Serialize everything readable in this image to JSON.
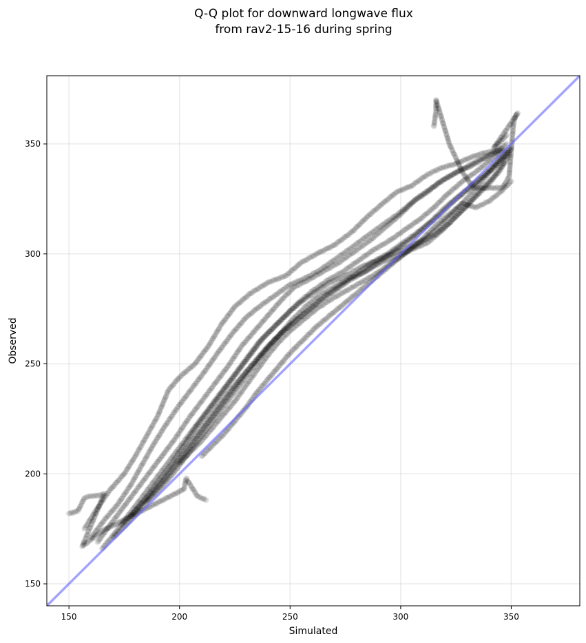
{
  "chart_data": {
    "type": "scatter",
    "title": "Q-Q plot for downward longwave flux",
    "subtitle": "from rav2-15-16 during spring",
    "xlabel": "Simulated",
    "ylabel": "Observed",
    "xlim": [
      140,
      381
    ],
    "ylim": [
      140,
      381
    ],
    "xticks": [
      150,
      200,
      250,
      300,
      350
    ],
    "yticks": [
      150,
      200,
      250,
      300,
      350
    ],
    "grid": true,
    "legend": false,
    "point_color": "#000000",
    "point_alpha": 0.12,
    "reference_line": {
      "from": [
        140,
        140
      ],
      "to": [
        381,
        381
      ],
      "color": "#6666ff"
    },
    "series": [
      {
        "points": [
          [
            157,
            175
          ],
          [
            162,
            183
          ],
          [
            168,
            192
          ],
          [
            175,
            200
          ],
          [
            180,
            208
          ],
          [
            185,
            217
          ],
          [
            190,
            226
          ],
          [
            195,
            238
          ],
          [
            200,
            244
          ],
          [
            207,
            250
          ],
          [
            213,
            258
          ],
          [
            219,
            268
          ],
          [
            225,
            276
          ],
          [
            232,
            282
          ],
          [
            240,
            287
          ],
          [
            248,
            290
          ],
          [
            255,
            296
          ],
          [
            262,
            300
          ],
          [
            270,
            304
          ],
          [
            278,
            310
          ],
          [
            285,
            317
          ],
          [
            292,
            323
          ],
          [
            298,
            328
          ],
          [
            305,
            331
          ],
          [
            312,
            336
          ],
          [
            318,
            339
          ],
          [
            325,
            341
          ],
          [
            332,
            344
          ],
          [
            338,
            346
          ],
          [
            344,
            347
          ],
          [
            348,
            350
          ]
        ]
      },
      {
        "points": [
          [
            160,
            171
          ],
          [
            166,
            179
          ],
          [
            172,
            186
          ],
          [
            178,
            195
          ],
          [
            183,
            204
          ],
          [
            188,
            213
          ],
          [
            193,
            221
          ],
          [
            199,
            230
          ],
          [
            205,
            238
          ],
          [
            211,
            246
          ],
          [
            218,
            256
          ],
          [
            224,
            264
          ],
          [
            230,
            271
          ],
          [
            236,
            276
          ],
          [
            243,
            281
          ],
          [
            250,
            286
          ],
          [
            257,
            289
          ],
          [
            264,
            293
          ],
          [
            271,
            298
          ],
          [
            278,
            303
          ],
          [
            286,
            309
          ],
          [
            293,
            314
          ],
          [
            300,
            319
          ],
          [
            307,
            325
          ],
          [
            314,
            330
          ],
          [
            320,
            334
          ],
          [
            327,
            338
          ],
          [
            334,
            342
          ],
          [
            340,
            345
          ],
          [
            346,
            348
          ]
        ]
      },
      {
        "points": [
          [
            163,
            169
          ],
          [
            168,
            176
          ],
          [
            174,
            184
          ],
          [
            180,
            192
          ],
          [
            186,
            200
          ],
          [
            192,
            208
          ],
          [
            198,
            216
          ],
          [
            204,
            225
          ],
          [
            210,
            233
          ],
          [
            216,
            241
          ],
          [
            222,
            249
          ],
          [
            228,
            258
          ],
          [
            234,
            265
          ],
          [
            240,
            272
          ],
          [
            246,
            279
          ],
          [
            252,
            285
          ],
          [
            258,
            288
          ],
          [
            265,
            292
          ],
          [
            272,
            296
          ],
          [
            279,
            301
          ],
          [
            286,
            306
          ],
          [
            293,
            312
          ],
          [
            300,
            318
          ],
          [
            306,
            324
          ],
          [
            312,
            328
          ],
          [
            318,
            333
          ],
          [
            325,
            337
          ],
          [
            332,
            340
          ],
          [
            339,
            344
          ],
          [
            345,
            347
          ]
        ]
      },
      {
        "points": [
          [
            165,
            166
          ],
          [
            170,
            172
          ],
          [
            176,
            180
          ],
          [
            182,
            188
          ],
          [
            188,
            196
          ],
          [
            194,
            204
          ],
          [
            200,
            212
          ],
          [
            206,
            220
          ],
          [
            212,
            228
          ],
          [
            218,
            236
          ],
          [
            224,
            244
          ],
          [
            230,
            252
          ],
          [
            236,
            260
          ],
          [
            242,
            266
          ],
          [
            248,
            272
          ],
          [
            254,
            278
          ],
          [
            260,
            283
          ],
          [
            267,
            288
          ],
          [
            274,
            292
          ],
          [
            281,
            297
          ],
          [
            288,
            302
          ],
          [
            295,
            306
          ],
          [
            302,
            311
          ],
          [
            309,
            316
          ],
          [
            315,
            321
          ],
          [
            321,
            327
          ],
          [
            328,
            333
          ],
          [
            335,
            338
          ],
          [
            341,
            343
          ],
          [
            347,
            347
          ]
        ]
      },
      {
        "points": [
          [
            170,
            171
          ],
          [
            176,
            177
          ],
          [
            182,
            184
          ],
          [
            188,
            191
          ],
          [
            194,
            198
          ],
          [
            200,
            206
          ],
          [
            206,
            214
          ],
          [
            212,
            222
          ],
          [
            218,
            230
          ],
          [
            224,
            238
          ],
          [
            230,
            246
          ],
          [
            236,
            253
          ],
          [
            242,
            260
          ],
          [
            248,
            266
          ],
          [
            254,
            271
          ],
          [
            260,
            276
          ],
          [
            266,
            281
          ],
          [
            273,
            286
          ],
          [
            280,
            291
          ],
          [
            287,
            296
          ],
          [
            294,
            300
          ],
          [
            301,
            305
          ],
          [
            308,
            310
          ],
          [
            314,
            315
          ],
          [
            320,
            321
          ],
          [
            326,
            326
          ],
          [
            332,
            331
          ],
          [
            338,
            336
          ],
          [
            344,
            342
          ],
          [
            349,
            346
          ]
        ]
      },
      {
        "points": [
          [
            174,
            177
          ],
          [
            180,
            183
          ],
          [
            186,
            190
          ],
          [
            192,
            197
          ],
          [
            198,
            205
          ],
          [
            204,
            213
          ],
          [
            210,
            221
          ],
          [
            216,
            229
          ],
          [
            222,
            237
          ],
          [
            228,
            244
          ],
          [
            234,
            251
          ],
          [
            240,
            258
          ],
          [
            246,
            264
          ],
          [
            252,
            269
          ],
          [
            258,
            274
          ],
          [
            264,
            279
          ],
          [
            270,
            283
          ],
          [
            277,
            288
          ],
          [
            284,
            292
          ],
          [
            291,
            297
          ],
          [
            298,
            302
          ],
          [
            305,
            307
          ],
          [
            312,
            313
          ],
          [
            318,
            318
          ],
          [
            324,
            324
          ],
          [
            330,
            329
          ],
          [
            336,
            334
          ],
          [
            342,
            339
          ],
          [
            347,
            344
          ],
          [
            350,
            348
          ]
        ]
      },
      {
        "points": [
          [
            178,
            181
          ],
          [
            184,
            188
          ],
          [
            190,
            196
          ],
          [
            196,
            204
          ],
          [
            202,
            213
          ],
          [
            208,
            222
          ],
          [
            214,
            230
          ],
          [
            220,
            238
          ],
          [
            226,
            246
          ],
          [
            232,
            254
          ],
          [
            238,
            262
          ],
          [
            244,
            268
          ],
          [
            250,
            274
          ],
          [
            256,
            279
          ],
          [
            262,
            283
          ],
          [
            268,
            287
          ],
          [
            275,
            290
          ],
          [
            282,
            294
          ],
          [
            289,
            297
          ],
          [
            296,
            300
          ],
          [
            303,
            303
          ],
          [
            310,
            306
          ],
          [
            316,
            309
          ],
          [
            322,
            314
          ],
          [
            328,
            320
          ],
          [
            334,
            326
          ],
          [
            340,
            332
          ],
          [
            345,
            338
          ],
          [
            349,
            345
          ]
        ]
      },
      {
        "points": [
          [
            185,
            187
          ],
          [
            191,
            193
          ],
          [
            197,
            200
          ],
          [
            203,
            208
          ],
          [
            209,
            216
          ],
          [
            215,
            224
          ],
          [
            221,
            232
          ],
          [
            227,
            240
          ],
          [
            233,
            248
          ],
          [
            239,
            256
          ],
          [
            245,
            263
          ],
          [
            251,
            270
          ],
          [
            257,
            276
          ],
          [
            263,
            281
          ],
          [
            270,
            285
          ],
          [
            277,
            289
          ],
          [
            284,
            292
          ],
          [
            291,
            296
          ],
          [
            298,
            299
          ],
          [
            305,
            302
          ],
          [
            312,
            305
          ],
          [
            318,
            310
          ],
          [
            324,
            316
          ],
          [
            330,
            322
          ],
          [
            336,
            329
          ],
          [
            342,
            335
          ],
          [
            347,
            342
          ]
        ]
      },
      {
        "points": [
          [
            200,
            205
          ],
          [
            205,
            210
          ],
          [
            210,
            215
          ],
          [
            215,
            221
          ],
          [
            220,
            227
          ],
          [
            225,
            233
          ],
          [
            230,
            240
          ],
          [
            235,
            247
          ],
          [
            240,
            254
          ],
          [
            245,
            260
          ],
          [
            250,
            265
          ],
          [
            256,
            270
          ],
          [
            262,
            275
          ],
          [
            268,
            279
          ],
          [
            275,
            283
          ],
          [
            282,
            287
          ],
          [
            289,
            291
          ],
          [
            296,
            296
          ],
          [
            303,
            301
          ],
          [
            310,
            306
          ],
          [
            316,
            311
          ],
          [
            322,
            317
          ],
          [
            328,
            323
          ],
          [
            334,
            330
          ],
          [
            340,
            337
          ],
          [
            345,
            343
          ],
          [
            349,
            348
          ]
        ]
      },
      {
        "points": [
          [
            210,
            208
          ],
          [
            215,
            213
          ],
          [
            220,
            218
          ],
          [
            225,
            224
          ],
          [
            230,
            230
          ],
          [
            235,
            237
          ],
          [
            240,
            243
          ],
          [
            245,
            249
          ],
          [
            250,
            255
          ],
          [
            256,
            261
          ],
          [
            262,
            267
          ],
          [
            268,
            272
          ],
          [
            274,
            277
          ],
          [
            280,
            282
          ],
          [
            286,
            287
          ],
          [
            292,
            292
          ],
          [
            298,
            297
          ],
          [
            304,
            302
          ],
          [
            310,
            307
          ],
          [
            316,
            313
          ],
          [
            322,
            318
          ],
          [
            328,
            323
          ],
          [
            334,
            321
          ],
          [
            340,
            324
          ],
          [
            345,
            328
          ],
          [
            350,
            333
          ]
        ]
      },
      {
        "points": [
          [
            150,
            182
          ],
          [
            154,
            183
          ],
          [
            157,
            189
          ],
          [
            160,
            190
          ],
          [
            163,
            190
          ],
          [
            166,
            191
          ],
          [
            156,
            167
          ],
          [
            165,
            174
          ],
          [
            202,
            193
          ],
          [
            203,
            198
          ],
          [
            208,
            190
          ],
          [
            212,
            188
          ]
        ]
      },
      {
        "points": [
          [
            315,
            358
          ],
          [
            316,
            365
          ],
          [
            316,
            370
          ],
          [
            322,
            350
          ],
          [
            328,
            337
          ],
          [
            333,
            330
          ],
          [
            346,
            330
          ],
          [
            349,
            335
          ],
          [
            351,
            359
          ],
          [
            352,
            363
          ],
          [
            353,
            364
          ],
          [
            342,
            348
          ],
          [
            348,
            354
          ]
        ]
      }
    ]
  }
}
